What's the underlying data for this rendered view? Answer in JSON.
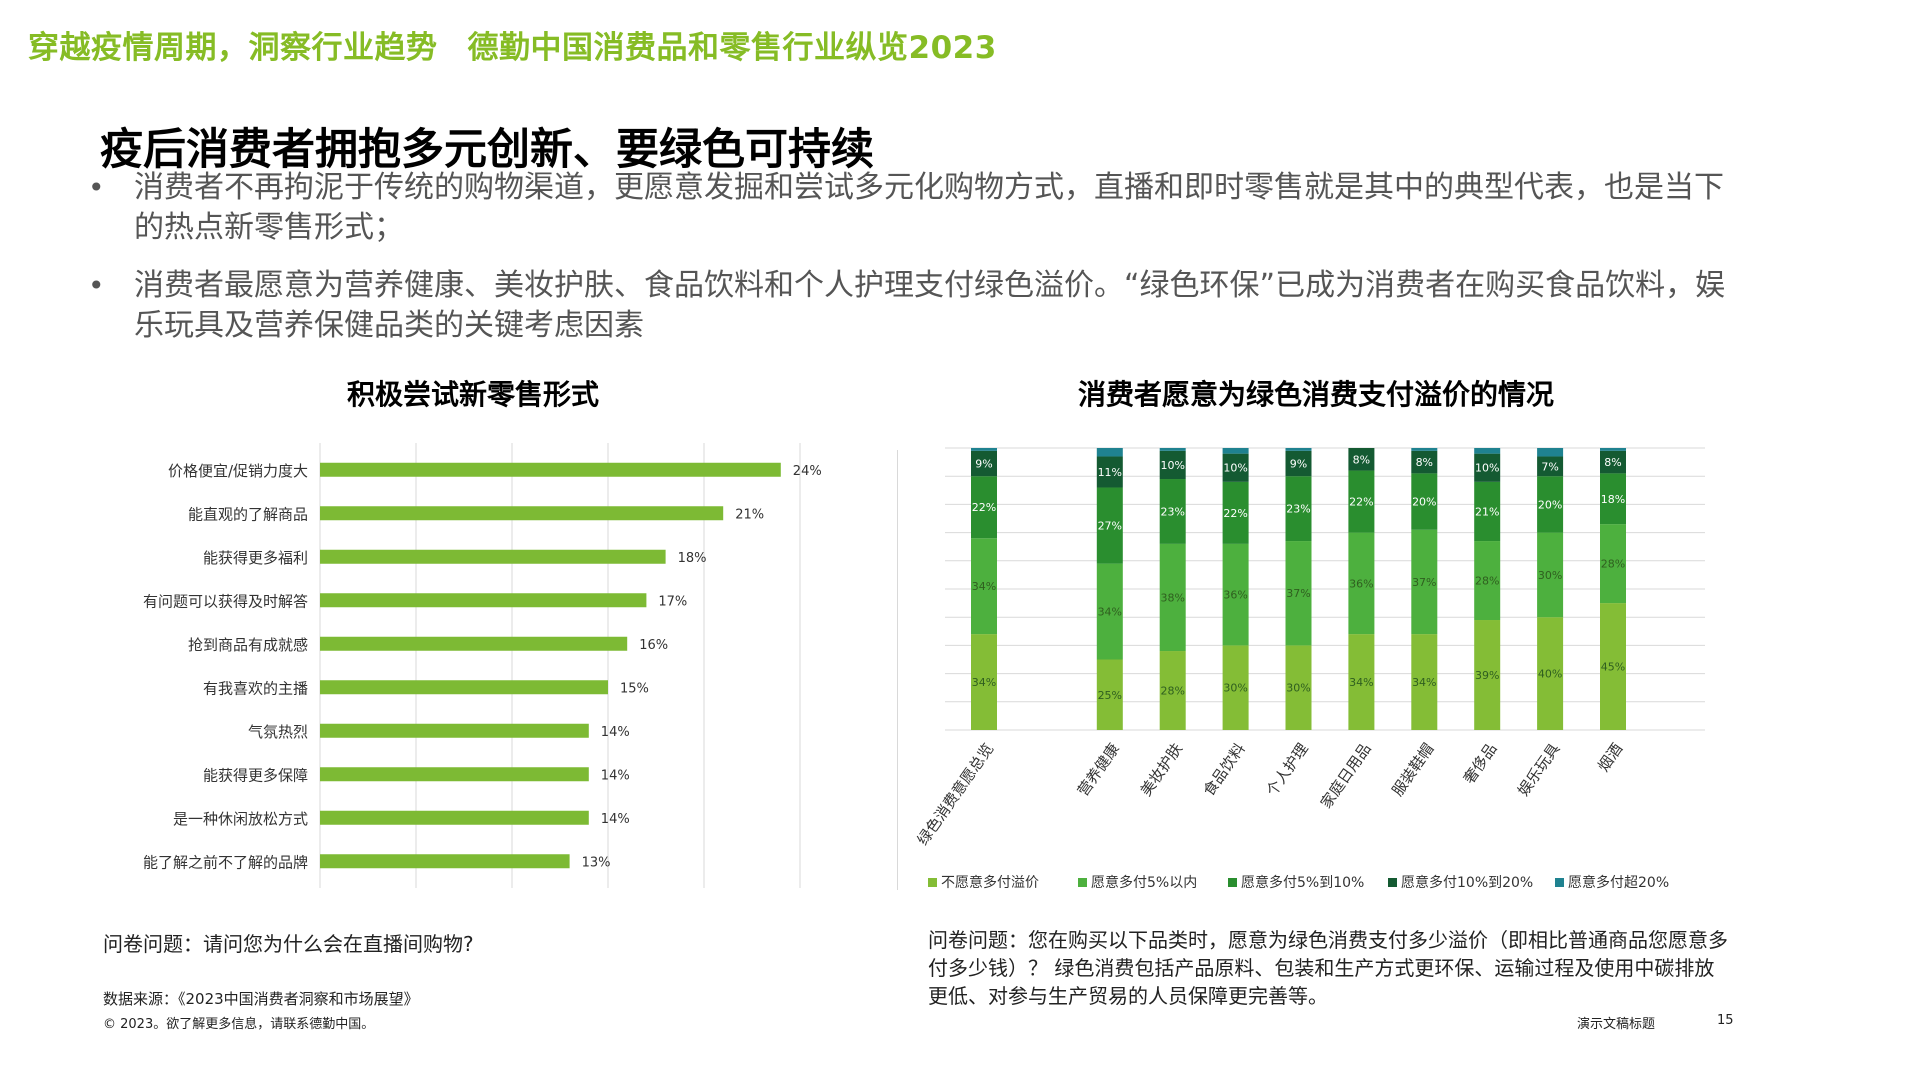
{
  "header": {
    "part1": "穿越疫情周期，洞察行业趋势",
    "part2": "德勤中国消费品和零售行业纵览2023"
  },
  "main_title": "疫后消费者拥抱多元创新、要绿色可持续",
  "bullets": [
    "消费者不再拘泥于传统的购物渠道，更愿意发掘和尝试多元化购物方式，直播和即时零售就是其中的典型代表，也是当下的热点新零售形式；",
    "消费者最愿意为营养健康、美妆护肤、食品饮料和个人护理支付绿色溢价。“绿色环保”已成为消费者在购买食品饮料，娱乐玩具及营养保健品类的关键考虑因素"
  ],
  "bullet_symbol": "•",
  "colors": {
    "brand_green": "#86BC25",
    "bar_green": "#7DBA34",
    "s1": "#84BD36",
    "s2": "#4DB03E",
    "s3": "#2A8E2F",
    "s4": "#145A32",
    "s5": "#1F8290"
  },
  "chart_data": [
    {
      "type": "bar",
      "orientation": "horizontal",
      "title": "积极尝试新零售形式",
      "categories": [
        "价格便宜/促销力度大",
        "能直观的了解商品",
        "能获得更多福利",
        "有问题可以获得及时解答",
        "抢到商品有成就感",
        "有我喜欢的主播",
        "气氛热烈",
        "能获得更多保障",
        "是一种休闲放松方式",
        "能了解之前不了解的品牌"
      ],
      "values": [
        24,
        21,
        18,
        17,
        16,
        15,
        14,
        14,
        14,
        13
      ],
      "value_labels": [
        "24%",
        "21%",
        "18%",
        "17%",
        "16%",
        "15%",
        "14%",
        "14%",
        "14%",
        "13%"
      ],
      "xlim": [
        0,
        25
      ],
      "grid": true
    },
    {
      "type": "bar",
      "stacked": true,
      "title": "消费者愿意为绿色消费支付溢价的情况",
      "categories": [
        "绿色消费意愿总览",
        "营养健康",
        "美妆护肤",
        "食品饮料",
        "个人护理",
        "家庭日用品",
        "服装鞋帽",
        "奢侈品",
        "娱乐玩具",
        "烟酒"
      ],
      "series": [
        {
          "name": "不愿意多付溢价",
          "values": [
            34,
            25,
            28,
            30,
            30,
            34,
            34,
            39,
            40,
            45
          ],
          "labels": [
            "34%",
            "25%",
            "28%",
            "30%",
            "30%",
            "34%",
            "34%",
            "39%",
            "40%",
            "45%"
          ]
        },
        {
          "name": "愿意多付5%以内",
          "values": [
            34,
            34,
            38,
            36,
            37,
            36,
            37,
            28,
            30,
            28
          ],
          "labels": [
            "34%",
            "34%",
            "38%",
            "36%",
            "37%",
            "36%",
            "37%",
            "28%",
            "30%",
            "28%"
          ]
        },
        {
          "name": "愿意多付5%到10%",
          "values": [
            22,
            27,
            23,
            22,
            23,
            22,
            20,
            21,
            20,
            18
          ],
          "labels": [
            "22%",
            "27%",
            "23%",
            "22%",
            "23%",
            "22%",
            "20%",
            "21%",
            "20%",
            "18%"
          ]
        },
        {
          "name": "愿意多付10%到20%",
          "values": [
            9,
            11,
            10,
            10,
            9,
            8,
            8,
            10,
            7,
            8
          ],
          "labels": [
            "9%",
            "11%",
            "10%",
            "10%",
            "9%",
            "8%",
            "8%",
            "10%",
            "7%",
            "8%"
          ]
        },
        {
          "name": "愿意多付超20%",
          "values": [
            1,
            3,
            1,
            2,
            1,
            0,
            1,
            2,
            3,
            1
          ],
          "labels": []
        }
      ],
      "ylim": [
        0,
        100
      ],
      "legend": "bottom",
      "grid": true
    }
  ],
  "notes": {
    "left": "问卷问题：请问您为什么会在直播间购物?",
    "right": "问卷问题：您在购买以下品类时，愿意为绿色消费支付多少溢价（即相比普通商品您愿意多付多少钱）？ 绿色消费包括产品原料、包装和生产方式更环保、运输过程及使用中碳排放更低、对参与生产贸易的人员保障更完善等。"
  },
  "footer": {
    "source": "数据来源：《2023中国消费者洞察和市场展望》",
    "copyright": "© 2023。欲了解更多信息，请联系德勤中国。",
    "label": "演示文稿标题",
    "page": "15"
  }
}
